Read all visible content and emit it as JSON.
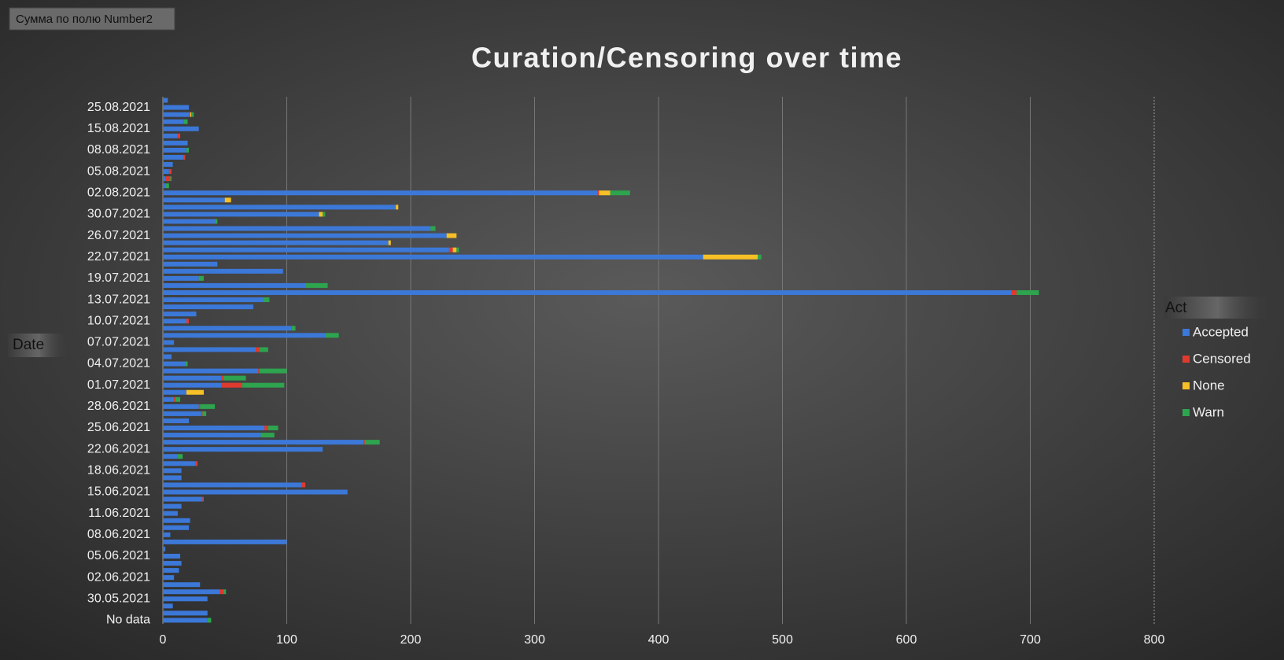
{
  "field_button": "Сумма по полю Number2",
  "chart_data": {
    "type": "stacked_barh",
    "title": "Curation/Censoring over time",
    "y_label": "Date",
    "legend_title": "Act",
    "legend": "right",
    "categories": [
      null,
      "25.08.2021",
      null,
      null,
      "15.08.2021",
      null,
      null,
      "08.08.2021",
      null,
      null,
      "05.08.2021",
      null,
      null,
      "02.08.2021",
      null,
      null,
      "30.07.2021",
      null,
      null,
      "26.07.2021",
      null,
      null,
      "22.07.2021",
      null,
      null,
      "19.07.2021",
      null,
      null,
      "13.07.2021",
      null,
      null,
      "10.07.2021",
      null,
      null,
      "07.07.2021",
      null,
      null,
      "04.07.2021",
      null,
      null,
      "01.07.2021",
      null,
      null,
      "28.06.2021",
      null,
      null,
      "25.06.2021",
      null,
      null,
      "22.06.2021",
      null,
      null,
      "18.06.2021",
      null,
      null,
      "15.06.2021",
      null,
      null,
      "11.06.2021",
      null,
      null,
      "08.06.2021",
      null,
      null,
      "05.06.2021",
      null,
      null,
      "02.06.2021",
      null,
      null,
      "30.05.2021",
      null,
      null,
      "No data"
    ],
    "series": [
      {
        "name": "Accepted",
        "color": "#3c78d8",
        "values": [
          4,
          21,
          21,
          17,
          29,
          12,
          20,
          19,
          17,
          8,
          5,
          2,
          2,
          351,
          50,
          188,
          126,
          42,
          216,
          229,
          182,
          231,
          436,
          44,
          97,
          29,
          115,
          685,
          81,
          73,
          27,
          19,
          104,
          131,
          9,
          75,
          7,
          18,
          77,
          47,
          47,
          19,
          9,
          29,
          31,
          21,
          82,
          79,
          162,
          129,
          12,
          26,
          15,
          15,
          112,
          149,
          32,
          15,
          12,
          22,
          21,
          6,
          100,
          2,
          14,
          15,
          13,
          9,
          30,
          46,
          36,
          8,
          36,
          36
        ]
      },
      {
        "name": "Censored",
        "color": "#e03a2f",
        "values": [
          0,
          0,
          1,
          0,
          0,
          2,
          0,
          0,
          1,
          0,
          2,
          4,
          0,
          1,
          0,
          0,
          0,
          0,
          0,
          0,
          0,
          3,
          0,
          0,
          0,
          0,
          0,
          4,
          0,
          0,
          0,
          2,
          0,
          0,
          0,
          3,
          0,
          0,
          1,
          2,
          17,
          0,
          1,
          1,
          1,
          0,
          3,
          0,
          1,
          0,
          0,
          2,
          0,
          0,
          3,
          0,
          1,
          0,
          0,
          0,
          0,
          0,
          0,
          0,
          0,
          0,
          0,
          0,
          0,
          3,
          0,
          0,
          0,
          0
        ]
      },
      {
        "name": "None",
        "color": "#f6c026",
        "values": [
          0,
          0,
          1,
          0,
          0,
          0,
          0,
          0,
          0,
          0,
          0,
          0,
          0,
          9,
          5,
          2,
          3,
          0,
          0,
          8,
          2,
          3,
          44,
          0,
          0,
          0,
          0,
          0,
          0,
          0,
          0,
          0,
          0,
          0,
          0,
          0,
          0,
          0,
          0,
          0,
          0,
          14,
          0,
          0,
          0,
          0,
          0,
          0,
          0,
          0,
          0,
          0,
          0,
          0,
          0,
          0,
          0,
          0,
          0,
          0,
          0,
          0,
          0,
          0,
          0,
          0,
          0,
          0,
          0,
          0,
          0,
          0,
          0,
          0
        ]
      },
      {
        "name": "Warn",
        "color": "#2ea44f",
        "values": [
          0,
          0,
          2,
          3,
          0,
          0,
          0,
          2,
          0,
          0,
          0,
          1,
          3,
          16,
          0,
          0,
          2,
          2,
          4,
          0,
          0,
          2,
          3,
          0,
          0,
          4,
          18,
          18,
          5,
          0,
          0,
          0,
          3,
          11,
          0,
          7,
          0,
          2,
          22,
          18,
          34,
          0,
          4,
          12,
          3,
          0,
          8,
          11,
          12,
          0,
          4,
          0,
          0,
          0,
          0,
          0,
          0,
          0,
          0,
          0,
          0,
          0,
          0,
          0,
          0,
          0,
          0,
          0,
          0,
          2,
          0,
          0,
          0,
          3
        ]
      }
    ],
    "xlim": [
      0,
      800
    ],
    "xticks": [
      0,
      100,
      200,
      300,
      400,
      500,
      600,
      700,
      800
    ],
    "grid": true
  }
}
